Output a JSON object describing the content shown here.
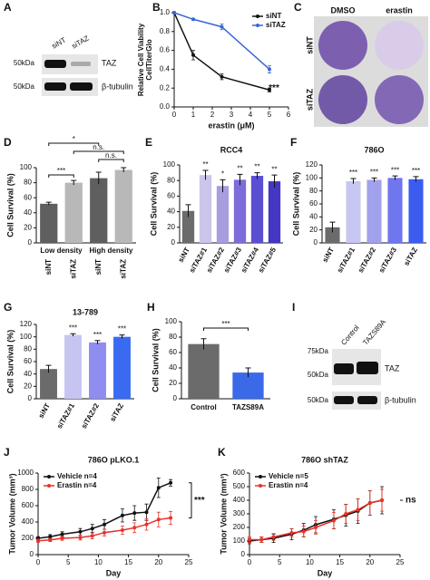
{
  "panel_A": {
    "letter": "A",
    "lanes": [
      "siNT",
      "siTAZ"
    ],
    "markers": [
      "50kDa",
      "50kDa"
    ],
    "bands": [
      "TAZ",
      "β-tubulin"
    ]
  },
  "panel_C": {
    "letter": "C",
    "columns": [
      "DMSO",
      "erastin"
    ],
    "rows": [
      "siNT",
      "siTAZ"
    ]
  },
  "panel_I": {
    "letter": "I",
    "lanes": [
      "Control",
      "TAZS89A"
    ],
    "markers": [
      "75kDa",
      "50kDa",
      "50kDa"
    ],
    "bands": [
      "TAZ",
      "β-tubulin"
    ]
  },
  "chart_data": [
    {
      "type": "line",
      "panel": "B",
      "xlabel": "erastin (μM)",
      "ylabel": [
        "Relative Cell Viability",
        "CellTiterGlo"
      ],
      "xlim": [
        0,
        6
      ],
      "xticks": [
        0,
        1,
        2,
        3,
        4,
        5,
        6
      ],
      "ylim": [
        0,
        1
      ],
      "yticks": [
        {
          "value": 0,
          "label": "0.0"
        },
        0.2,
        0.4,
        0.6,
        0.8,
        {
          "value": 1,
          "label": "1.0"
        }
      ],
      "annotation": "***",
      "legend": "upper right",
      "series": [
        {
          "name": "siNT",
          "color": "#111111",
          "x": [
            0,
            1,
            2.5,
            5
          ],
          "values": [
            1.0,
            0.55,
            0.32,
            0.18
          ],
          "errors": [
            0,
            0.05,
            0.03,
            0.02
          ]
        },
        {
          "name": "siTAZ",
          "color": "#3a66d8",
          "x": [
            0,
            1,
            2.5,
            5
          ],
          "values": [
            1.0,
            0.93,
            0.85,
            0.4
          ],
          "errors": [
            0,
            0.01,
            0.03,
            0.04
          ]
        }
      ]
    },
    {
      "type": "bar",
      "panel": "D",
      "ylabel": "Cell Survival (%)",
      "ylim": [
        0,
        100
      ],
      "yticks": [
        0,
        20,
        40,
        60,
        80,
        100
      ],
      "categories": [
        "siNT",
        "siTAZ",
        "siNT",
        "siTAZ"
      ],
      "groups": [
        "Low density",
        "High density"
      ],
      "values": [
        52,
        80,
        86,
        97
      ],
      "errors": [
        2,
        3,
        8,
        3
      ],
      "colors": [
        "#5f5f5f",
        "#b8b8b8",
        "#5f5f5f",
        "#b8b8b8"
      ],
      "comparisons": [
        "***",
        "*",
        "n.s.",
        "n.s."
      ]
    },
    {
      "type": "bar",
      "panel": "E",
      "title": "RCC4",
      "ylabel": "Cell Survival (%)",
      "ylim": [
        0,
        100
      ],
      "yticks": [
        0,
        20,
        40,
        60,
        80,
        100
      ],
      "categories": [
        "siNT",
        "siTAZ#1",
        "siTAZ#2",
        "siTAZ#3",
        "siTAZ#4",
        "siTAZ#5"
      ],
      "values": [
        41,
        87,
        73,
        81,
        86,
        79
      ],
      "errors": [
        8,
        6,
        8,
        7,
        4,
        8
      ],
      "colors": [
        "#6b6b6b",
        "#cbc5ec",
        "#a79ee0",
        "#7e6cdb",
        "#5a4fd2",
        "#4437c4"
      ],
      "bar_labels": [
        null,
        "**",
        "*",
        "**",
        "**",
        "**"
      ]
    },
    {
      "type": "bar",
      "panel": "F",
      "title": "786O",
      "ylabel": "Cell Survival (%)",
      "ylim": [
        0,
        120
      ],
      "yticks": [
        0,
        20,
        40,
        60,
        80,
        100,
        120
      ],
      "categories": [
        "siNT",
        "siTAZ#1",
        "siTAZ#2",
        "siTAZ#3",
        "siTAZ"
      ],
      "values": [
        24,
        95,
        97,
        100,
        98
      ],
      "errors": [
        8,
        4,
        3,
        3,
        4
      ],
      "colors": [
        "#6b6b6b",
        "#c8c7f1",
        "#a1a1ec",
        "#6f76ee",
        "#3c5cf0"
      ],
      "bar_labels": [
        null,
        "***",
        "***",
        "***",
        "***"
      ]
    },
    {
      "type": "bar",
      "panel": "G",
      "title": "13-789",
      "ylabel": "Cell Survival (%)",
      "ylim": [
        0,
        120
      ],
      "yticks": [
        0,
        20,
        40,
        60,
        80,
        100,
        120
      ],
      "categories": [
        "siNT",
        "siTAZ#1",
        "siTAZ#2",
        "siTAZ"
      ],
      "values": [
        48,
        103,
        91,
        100
      ],
      "errors": [
        6,
        2,
        3,
        3
      ],
      "colors": [
        "#6b6b6b",
        "#c6c5f1",
        "#8f8df0",
        "#3a6af0"
      ],
      "bar_labels": [
        null,
        "***",
        "***",
        "***"
      ]
    },
    {
      "type": "bar",
      "panel": "H",
      "ylabel": "Cell Survival (%)",
      "ylim": [
        0,
        100
      ],
      "yticks": [
        0,
        20,
        40,
        60,
        80,
        100
      ],
      "categories": [
        "Control",
        "TAZS89A"
      ],
      "values": [
        71,
        34
      ],
      "errors": [
        7,
        6
      ],
      "colors": [
        "#6b6b6b",
        "#3a6ae8"
      ],
      "comparisons": [
        "***"
      ]
    },
    {
      "type": "line",
      "panel": "J",
      "title": "786O pLKO.1",
      "xlabel": "Day",
      "ylabel": "Tumor Volume (mm³)",
      "xlim": [
        0,
        25
      ],
      "xticks": [
        0,
        5,
        10,
        15,
        20,
        25
      ],
      "ylim": [
        0,
        1000
      ],
      "yticks": [
        0,
        200,
        400,
        600,
        800,
        1000
      ],
      "annotation": "***",
      "legend": "upper left",
      "series": [
        {
          "name": "Vehicle  n=4",
          "color": "#111111",
          "x": [
            0,
            2,
            4,
            7,
            9,
            11,
            14,
            16,
            18,
            20,
            22
          ],
          "values": [
            200,
            220,
            250,
            280,
            320,
            370,
            480,
            510,
            520,
            820,
            880
          ],
          "errors": [
            20,
            25,
            30,
            40,
            50,
            60,
            80,
            90,
            100,
            120,
            40
          ]
        },
        {
          "name": "Erastin  n=4",
          "color": "#e8322a",
          "x": [
            0,
            2,
            4,
            7,
            9,
            11,
            14,
            16,
            18,
            20,
            22
          ],
          "values": [
            170,
            180,
            200,
            210,
            230,
            270,
            300,
            330,
            370,
            430,
            450
          ],
          "errors": [
            20,
            20,
            25,
            30,
            35,
            40,
            50,
            60,
            70,
            90,
            80
          ]
        }
      ]
    },
    {
      "type": "line",
      "panel": "K",
      "title": "786O shTAZ",
      "xlabel": "Day",
      "ylabel": "Tumor Volume (mm³)",
      "xlim": [
        0,
        25
      ],
      "xticks": [
        0,
        5,
        10,
        15,
        20,
        25
      ],
      "ylim": [
        0,
        600
      ],
      "yticks": [
        0,
        100,
        200,
        300,
        400,
        500,
        600
      ],
      "annotation": "ns",
      "legend": "upper left",
      "series": [
        {
          "name": "Vehicle  n=5",
          "color": "#111111",
          "x": [
            0,
            2,
            4,
            7,
            9,
            11,
            14,
            16,
            18,
            20,
            22
          ],
          "values": [
            100,
            110,
            120,
            150,
            180,
            220,
            260,
            290,
            320,
            380,
            400
          ],
          "errors": [
            20,
            20,
            30,
            40,
            50,
            60,
            70,
            80,
            90,
            90,
            100
          ]
        },
        {
          "name": "Erastin  n=4",
          "color": "#e8322a",
          "x": [
            0,
            2,
            4,
            7,
            9,
            11,
            14,
            16,
            18,
            20,
            22
          ],
          "values": [
            110,
            110,
            130,
            160,
            170,
            200,
            250,
            300,
            330,
            380,
            400
          ],
          "errors": [
            20,
            20,
            25,
            30,
            40,
            50,
            60,
            70,
            80,
            90,
            80
          ]
        }
      ]
    }
  ]
}
